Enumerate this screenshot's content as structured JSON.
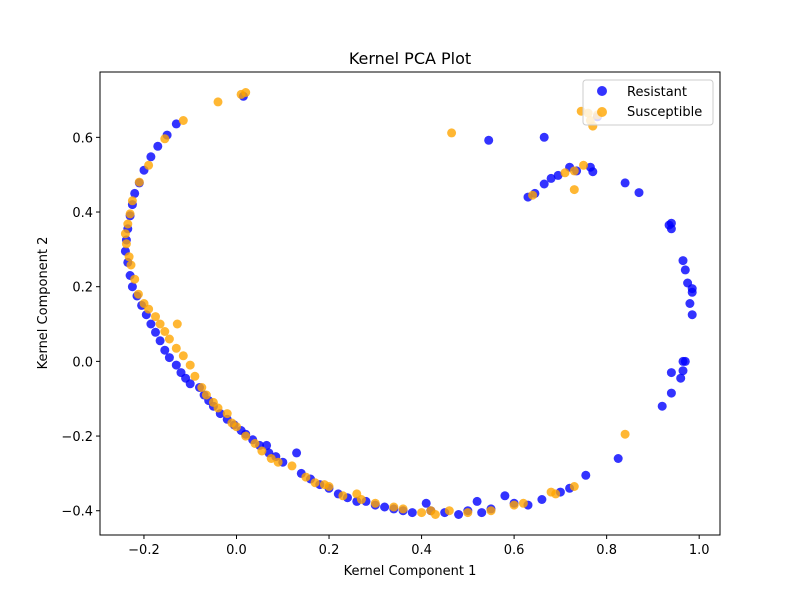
{
  "chart_data": {
    "type": "scatter",
    "title": "Kernel PCA Plot",
    "xlabel": "Kernel Component 1",
    "ylabel": "Kernel Component 2",
    "xlim": [
      -0.295,
      1.045
    ],
    "ylim": [
      -0.465,
      0.775
    ],
    "xticks": [
      -0.2,
      0.0,
      0.2,
      0.4,
      0.6,
      0.8,
      1.0
    ],
    "yticks": [
      -0.4,
      -0.2,
      0.0,
      0.2,
      0.4,
      0.6
    ],
    "grid": false,
    "legend_position": "top-right",
    "series": [
      {
        "name": "Resistant",
        "color": "#0000ff",
        "opacity": 0.8,
        "points": [
          [
            -0.13,
            0.636
          ],
          [
            -0.15,
            0.606
          ],
          [
            -0.17,
            0.576
          ],
          [
            -0.185,
            0.548
          ],
          [
            -0.2,
            0.512
          ],
          [
            -0.21,
            0.478
          ],
          [
            -0.22,
            0.45
          ],
          [
            -0.225,
            0.42
          ],
          [
            -0.23,
            0.39
          ],
          [
            -0.235,
            0.355
          ],
          [
            -0.238,
            0.325
          ],
          [
            -0.24,
            0.295
          ],
          [
            -0.235,
            0.265
          ],
          [
            -0.23,
            0.23
          ],
          [
            -0.225,
            0.2
          ],
          [
            -0.215,
            0.175
          ],
          [
            -0.205,
            0.15
          ],
          [
            -0.195,
            0.125
          ],
          [
            -0.185,
            0.1
          ],
          [
            -0.175,
            0.078
          ],
          [
            -0.165,
            0.055
          ],
          [
            -0.155,
            0.03
          ],
          [
            -0.145,
            0.01
          ],
          [
            -0.13,
            -0.01
          ],
          [
            -0.12,
            -0.03
          ],
          [
            -0.11,
            -0.045
          ],
          [
            -0.1,
            -0.06
          ],
          [
            -0.08,
            -0.07
          ],
          [
            -0.07,
            -0.09
          ],
          [
            -0.06,
            -0.105
          ],
          [
            -0.05,
            -0.12
          ],
          [
            -0.035,
            -0.14
          ],
          [
            -0.02,
            -0.155
          ],
          [
            -0.005,
            -0.17
          ],
          [
            0.01,
            -0.185
          ],
          [
            0.02,
            -0.195
          ],
          [
            0.035,
            -0.21
          ],
          [
            0.05,
            -0.225
          ],
          [
            0.065,
            -0.225
          ],
          [
            0.07,
            -0.245
          ],
          [
            0.085,
            -0.255
          ],
          [
            0.1,
            -0.27
          ],
          [
            0.13,
            -0.245
          ],
          [
            0.14,
            -0.3
          ],
          [
            0.16,
            -0.315
          ],
          [
            0.18,
            -0.33
          ],
          [
            0.2,
            -0.34
          ],
          [
            0.22,
            -0.355
          ],
          [
            0.24,
            -0.365
          ],
          [
            0.26,
            -0.375
          ],
          [
            0.28,
            -0.375
          ],
          [
            0.3,
            -0.385
          ],
          [
            0.32,
            -0.39
          ],
          [
            0.34,
            -0.395
          ],
          [
            0.36,
            -0.4
          ],
          [
            0.38,
            -0.405
          ],
          [
            0.41,
            -0.38
          ],
          [
            0.42,
            -0.4
          ],
          [
            0.45,
            -0.405
          ],
          [
            0.48,
            -0.41
          ],
          [
            0.5,
            -0.4
          ],
          [
            0.52,
            -0.375
          ],
          [
            0.53,
            -0.405
          ],
          [
            0.55,
            -0.395
          ],
          [
            0.58,
            -0.36
          ],
          [
            0.6,
            -0.38
          ],
          [
            0.63,
            -0.385
          ],
          [
            0.66,
            -0.37
          ],
          [
            0.7,
            -0.35
          ],
          [
            0.72,
            -0.34
          ],
          [
            0.755,
            -0.305
          ],
          [
            0.825,
            -0.26
          ],
          [
            0.92,
            -0.12
          ],
          [
            0.94,
            -0.085
          ],
          [
            0.94,
            -0.03
          ],
          [
            0.96,
            -0.045
          ],
          [
            0.965,
            -0.025
          ],
          [
            0.965,
            0.0
          ],
          [
            0.97,
            0.0
          ],
          [
            0.985,
            0.125
          ],
          [
            0.98,
            0.155
          ],
          [
            0.985,
            0.185
          ],
          [
            0.985,
            0.195
          ],
          [
            0.975,
            0.21
          ],
          [
            0.97,
            0.245
          ],
          [
            0.965,
            0.27
          ],
          [
            0.94,
            0.355
          ],
          [
            0.935,
            0.365
          ],
          [
            0.94,
            0.37
          ],
          [
            0.87,
            0.452
          ],
          [
            0.84,
            0.478
          ],
          [
            0.77,
            0.508
          ],
          [
            0.765,
            0.52
          ],
          [
            0.72,
            0.52
          ],
          [
            0.735,
            0.51
          ],
          [
            0.695,
            0.498
          ],
          [
            0.68,
            0.49
          ],
          [
            0.665,
            0.475
          ],
          [
            0.645,
            0.45
          ],
          [
            0.63,
            0.44
          ],
          [
            0.665,
            0.6
          ],
          [
            0.545,
            0.592
          ],
          [
            0.015,
            0.71
          ],
          [
            0.78,
            0.655
          ]
        ]
      },
      {
        "name": "Susceptible",
        "color": "#ffa500",
        "opacity": 0.8,
        "points": [
          [
            -0.115,
            0.645
          ],
          [
            -0.155,
            0.596
          ],
          [
            -0.19,
            0.525
          ],
          [
            -0.21,
            0.48
          ],
          [
            -0.225,
            0.43
          ],
          [
            -0.23,
            0.395
          ],
          [
            -0.235,
            0.368
          ],
          [
            -0.24,
            0.342
          ],
          [
            -0.238,
            0.315
          ],
          [
            -0.232,
            0.28
          ],
          [
            -0.228,
            0.258
          ],
          [
            -0.22,
            0.22
          ],
          [
            -0.212,
            0.18
          ],
          [
            -0.2,
            0.155
          ],
          [
            -0.19,
            0.14
          ],
          [
            -0.175,
            0.12
          ],
          [
            -0.165,
            0.1
          ],
          [
            -0.155,
            0.08
          ],
          [
            -0.145,
            0.06
          ],
          [
            -0.128,
            0.1
          ],
          [
            -0.13,
            0.035
          ],
          [
            -0.115,
            0.015
          ],
          [
            -0.1,
            -0.01
          ],
          [
            -0.09,
            -0.04
          ],
          [
            -0.075,
            -0.07
          ],
          [
            -0.065,
            -0.09
          ],
          [
            -0.05,
            -0.11
          ],
          [
            -0.04,
            -0.125
          ],
          [
            -0.02,
            -0.14
          ],
          [
            -0.01,
            -0.165
          ],
          [
            0.0,
            -0.175
          ],
          [
            0.02,
            -0.2
          ],
          [
            0.04,
            -0.22
          ],
          [
            0.055,
            -0.24
          ],
          [
            0.075,
            -0.26
          ],
          [
            0.09,
            -0.27
          ],
          [
            0.12,
            -0.28
          ],
          [
            0.15,
            -0.31
          ],
          [
            0.17,
            -0.325
          ],
          [
            0.19,
            -0.33
          ],
          [
            0.2,
            -0.335
          ],
          [
            0.23,
            -0.36
          ],
          [
            0.26,
            -0.355
          ],
          [
            0.27,
            -0.37
          ],
          [
            0.3,
            -0.38
          ],
          [
            0.34,
            -0.39
          ],
          [
            0.36,
            -0.395
          ],
          [
            0.4,
            -0.405
          ],
          [
            0.42,
            -0.4
          ],
          [
            0.43,
            -0.41
          ],
          [
            0.46,
            -0.4
          ],
          [
            0.5,
            -0.405
          ],
          [
            0.55,
            -0.4
          ],
          [
            0.6,
            -0.385
          ],
          [
            0.62,
            -0.38
          ],
          [
            0.68,
            -0.35
          ],
          [
            0.69,
            -0.355
          ],
          [
            0.73,
            -0.335
          ],
          [
            0.84,
            -0.195
          ],
          [
            0.73,
            0.46
          ],
          [
            0.73,
            0.51
          ],
          [
            0.75,
            0.525
          ],
          [
            0.71,
            0.505
          ],
          [
            0.64,
            0.445
          ],
          [
            0.465,
            0.612
          ],
          [
            0.765,
            0.645
          ],
          [
            0.77,
            0.63
          ],
          [
            0.745,
            0.67
          ],
          [
            0.76,
            0.665
          ],
          [
            0.78,
            0.66
          ],
          [
            0.01,
            0.715
          ],
          [
            0.02,
            0.72
          ],
          [
            -0.04,
            0.695
          ]
        ]
      }
    ]
  }
}
